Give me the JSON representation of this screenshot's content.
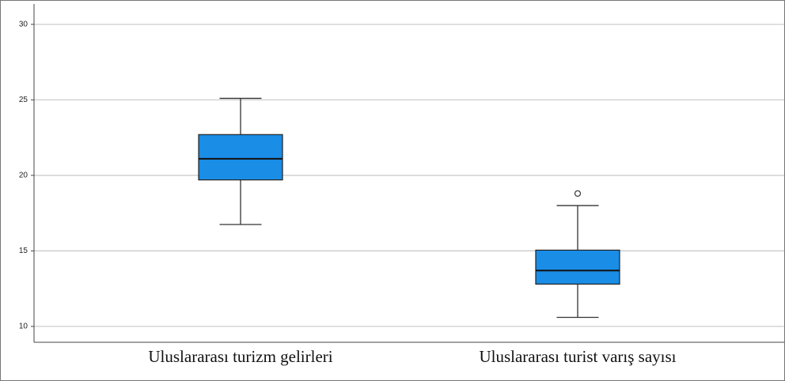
{
  "chart_data": {
    "type": "box",
    "categories": [
      "Uluslararası turizm gelirleri",
      "Uluslararası turist varış sayısı"
    ],
    "boxes": [
      {
        "min": 16.75,
        "q1": 19.7,
        "median": 21.1,
        "q3": 22.7,
        "max": 25.1,
        "outliers": []
      },
      {
        "min": 10.6,
        "q1": 12.8,
        "median": 13.7,
        "q3": 15.05,
        "max": 18.0,
        "outliers": [
          18.8
        ]
      }
    ],
    "color": "#1a8de6",
    "ylim": [
      8.95,
      31.35
    ],
    "yticks": [
      10,
      15,
      20,
      25,
      30
    ],
    "grid": true
  }
}
